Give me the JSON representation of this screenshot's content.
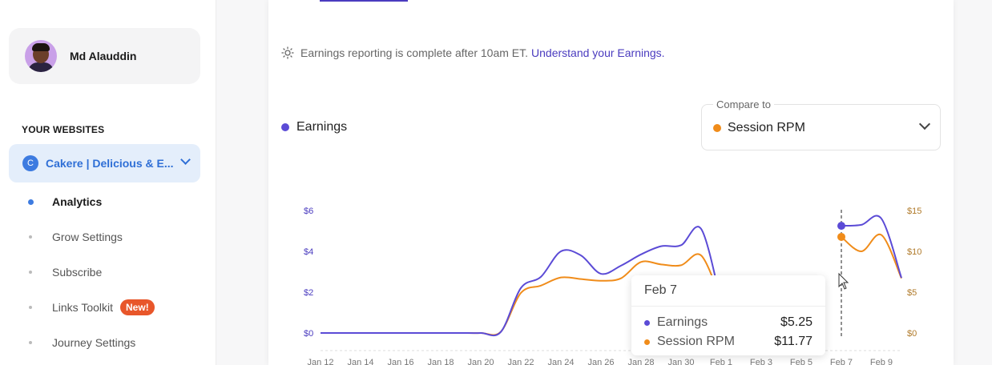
{
  "user": {
    "name": "Md Alauddin"
  },
  "sidebar": {
    "section_label": "YOUR WEBSITES",
    "site": {
      "badge": "C",
      "name": "Cakere | Delicious & E..."
    },
    "items": [
      {
        "label": "Analytics"
      },
      {
        "label": "Grow Settings"
      },
      {
        "label": "Subscribe"
      },
      {
        "label": "Links Toolkit",
        "badge": "New!"
      },
      {
        "label": "Journey Settings"
      }
    ]
  },
  "notice": {
    "text": "Earnings reporting is complete after 10am ET.",
    "link": "Understand your Earnings."
  },
  "legend": {
    "primary": "Earnings"
  },
  "compare": {
    "label": "Compare to",
    "value": "Session RPM"
  },
  "tooltip": {
    "date": "Feb 7",
    "rows": [
      {
        "label": "Earnings",
        "value": "$5.25"
      },
      {
        "label": "Session RPM",
        "value": "$11.77"
      }
    ]
  },
  "colors": {
    "earnings": "#5b4bd6",
    "rpm": "#f08c1a",
    "accent": "#4a3bbf"
  },
  "chart_data": {
    "type": "line",
    "x": [
      "Jan 12",
      "Jan 13",
      "Jan 14",
      "Jan 15",
      "Jan 16",
      "Jan 17",
      "Jan 18",
      "Jan 19",
      "Jan 20",
      "Jan 21",
      "Jan 22",
      "Jan 23",
      "Jan 24",
      "Jan 25",
      "Jan 26",
      "Jan 27",
      "Jan 28",
      "Jan 29",
      "Jan 30",
      "Jan 31",
      "Feb 1",
      "Feb 2",
      "Feb 3",
      "Feb 4",
      "Feb 5",
      "Feb 6",
      "Feb 7",
      "Feb 8",
      "Feb 9",
      "Feb 10"
    ],
    "x_tick_labels": [
      "Jan 12",
      "Jan 14",
      "Jan 16",
      "Jan 18",
      "Jan 20",
      "Jan 22",
      "Jan 24",
      "Jan 26",
      "Jan 28",
      "Jan 30",
      "Feb 1",
      "Feb 3",
      "Feb 5",
      "Feb 7",
      "Feb 9"
    ],
    "series": [
      {
        "name": "Earnings",
        "axis": "left",
        "values": [
          0,
          0,
          0,
          0,
          0,
          0,
          0,
          0,
          0,
          0.05,
          2.2,
          2.75,
          4.0,
          3.8,
          2.9,
          3.3,
          3.85,
          4.25,
          4.3,
          5.1,
          1.5,
          null,
          null,
          null,
          null,
          null,
          5.25,
          5.3,
          5.6,
          2.7
        ]
      },
      {
        "name": "Session RPM",
        "axis": "right",
        "values": [
          0,
          0,
          0,
          0,
          0,
          0,
          0,
          0,
          0,
          0.15,
          4.9,
          5.8,
          6.8,
          6.6,
          6.4,
          6.7,
          8.7,
          8.4,
          8.3,
          9.5,
          4.0,
          null,
          null,
          null,
          null,
          null,
          11.77,
          10.0,
          12.0,
          6.7
        ]
      }
    ],
    "y_left": {
      "ticks": [
        "$0",
        "$2",
        "$4",
        "$6"
      ],
      "range": [
        0,
        6
      ]
    },
    "y_right": {
      "ticks": [
        "$0",
        "$5",
        "$10",
        "$15"
      ],
      "range": [
        0,
        15
      ]
    },
    "highlight": "Feb 7"
  }
}
